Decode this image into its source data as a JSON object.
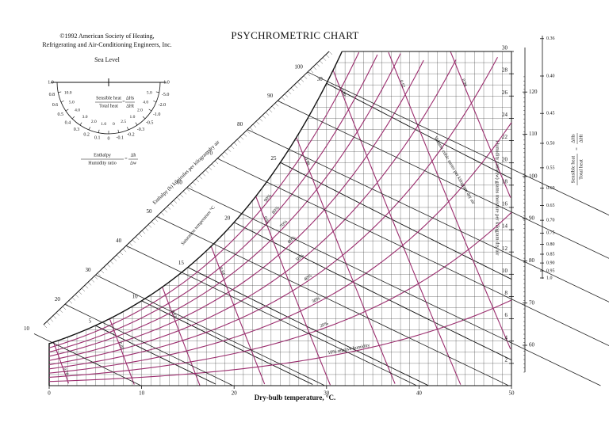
{
  "chart_data": {
    "type": "psychrometric",
    "title": "PSYCHROMETRIC CHART",
    "copyright": [
      "©1992 American Society of Heating,",
      "Refrigerating and Air-Conditioning Engineers, Inc."
    ],
    "subtitle": "Sea Level",
    "xlabel": "Dry-bulb temperature, °C.",
    "ylabel": "Humidity ratio (w) grams moisture per kilogram dry air",
    "xlim": [
      0,
      50
    ],
    "xticks": [
      0,
      10,
      20,
      30,
      40,
      50
    ],
    "ylim": [
      0,
      30
    ],
    "yticks": [
      2,
      4,
      6,
      8,
      10,
      12,
      14,
      16,
      18,
      20,
      22,
      24,
      26,
      28,
      30
    ],
    "grid": true,
    "relative_humidity": {
      "values": [
        10,
        20,
        30,
        40,
        50,
        60,
        70,
        80,
        90
      ],
      "labels": [
        "10% relative humidity",
        "20%",
        "30%",
        "40%",
        "50%",
        "60%",
        "70%",
        "80%",
        "90%"
      ],
      "color": "#9b2d6e"
    },
    "enthalpy": {
      "label": "Enthalpy (h) kilojoules per kilogram dry air",
      "values": [
        10,
        20,
        30,
        40,
        50,
        60,
        70,
        80,
        90,
        100
      ],
      "color": "#222222"
    },
    "saturation": {
      "label": "Saturation temperature °C",
      "values": [
        5,
        10,
        15,
        20,
        25,
        30
      ]
    },
    "volume": {
      "label": "Volume cubic meter per kilogram dry air",
      "values": [
        0.78,
        0.8,
        0.82,
        0.84,
        0.86,
        0.88,
        0.9,
        0.92,
        0.94
      ],
      "labels": [
        "0.78",
        "0.80",
        "0.82",
        "0.84",
        "0.86",
        "0.88",
        "0.90",
        "0.92",
        "0.94"
      ],
      "color": "#9b2d6e"
    },
    "enthalpy_scale": {
      "values": [
        60,
        70,
        80,
        90,
        100,
        110,
        120
      ]
    },
    "shr_scale": {
      "values": [
        0.36,
        0.4,
        0.45,
        0.5,
        0.55,
        0.6,
        0.65,
        0.7,
        0.75,
        0.8,
        0.85,
        0.9,
        0.95,
        1.0
      ],
      "labels": [
        "0.36",
        "0.40",
        "0.45",
        "0.50",
        "0.55",
        "0.60",
        "0.65",
        "0.70",
        "0.75",
        "0.80",
        "0.85",
        "0.90",
        "0.95",
        "1.0"
      ],
      "numerator": "Sensible heat",
      "denominator": "Total heat",
      "ratio_top": "ΔHs",
      "ratio_bottom": "ΔHt",
      "equals": "="
    },
    "protractor": {
      "outer": [
        "1.0",
        "0.8",
        "0.6",
        "0.5",
        "0.4",
        "0.3",
        "0.2",
        "0.1",
        "0",
        "-0.1",
        "-0.2",
        "-0.3",
        "-0.5",
        "-1.0",
        "-2.0",
        "-5.0",
        "1.0"
      ],
      "inner": [
        "10.0",
        "5.0",
        "4.0",
        "3.0",
        "2.0",
        "1.0",
        "0",
        "2.5",
        "1.0",
        "2.0",
        "4.0",
        "5.0"
      ],
      "shr_top": "Sensible heat",
      "shr_bottom": "Total heat",
      "shr_ratio_top": "ΔHs",
      "shr_ratio_bottom": "ΔHt",
      "h_top": "Enthalpy",
      "h_bottom": "Humidity ratio",
      "h_ratio_top": "Δh",
      "h_ratio_bottom": "Δw",
      "equals": "="
    }
  }
}
